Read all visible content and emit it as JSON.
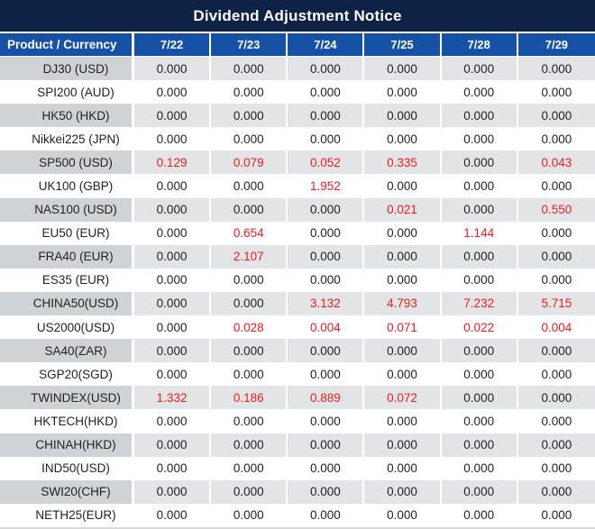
{
  "title": "Dividend Adjustment Notice",
  "table": {
    "header": {
      "product_col": "Product / Currency",
      "dates": [
        "7/22",
        "7/23",
        "7/24",
        "7/25",
        "7/28",
        "7/29"
      ]
    },
    "rows": [
      {
        "product": "DJ30 (USD)",
        "values": [
          "0.000",
          "0.000",
          "0.000",
          "0.000",
          "0.000",
          "0.000"
        ],
        "red": []
      },
      {
        "product": "SPI200 (AUD)",
        "values": [
          "0.000",
          "0.000",
          "0.000",
          "0.000",
          "0.000",
          "0.000"
        ],
        "red": []
      },
      {
        "product": "HK50 (HKD)",
        "values": [
          "0.000",
          "0.000",
          "0.000",
          "0.000",
          "0.000",
          "0.000"
        ],
        "red": []
      },
      {
        "product": "Nikkei225 (JPN)",
        "values": [
          "0.000",
          "0.000",
          "0.000",
          "0.000",
          "0.000",
          "0.000"
        ],
        "red": []
      },
      {
        "product": "SP500 (USD)",
        "values": [
          "0.129",
          "0.079",
          "0.052",
          "0.335",
          "0.000",
          "0.043"
        ],
        "red": [
          0,
          1,
          2,
          3,
          5
        ]
      },
      {
        "product": "UK100 (GBP)",
        "values": [
          "0.000",
          "0.000",
          "1.952",
          "0.000",
          "0.000",
          "0.000"
        ],
        "red": [
          2
        ]
      },
      {
        "product": "NAS100 (USD)",
        "values": [
          "0.000",
          "0.000",
          "0.000",
          "0.021",
          "0.000",
          "0.550"
        ],
        "red": [
          3,
          5
        ]
      },
      {
        "product": "EU50 (EUR)",
        "values": [
          "0.000",
          "0.654",
          "0.000",
          "0.000",
          "1.144",
          "0.000"
        ],
        "red": [
          1,
          4
        ]
      },
      {
        "product": "FRA40 (EUR)",
        "values": [
          "0.000",
          "2.107",
          "0.000",
          "0.000",
          "0.000",
          "0.000"
        ],
        "red": [
          1
        ]
      },
      {
        "product": "ES35 (EUR)",
        "values": [
          "0.000",
          "0.000",
          "0.000",
          "0.000",
          "0.000",
          "0.000"
        ],
        "red": []
      },
      {
        "product": "CHINA50(USD)",
        "values": [
          "0.000",
          "0.000",
          "3.132",
          "4.793",
          "7.232",
          "5.715"
        ],
        "red": [
          2,
          3,
          4,
          5
        ]
      },
      {
        "product": "US2000(USD)",
        "values": [
          "0.000",
          "0.028",
          "0.004",
          "0.071",
          "0.022",
          "0.004"
        ],
        "red": [
          1,
          2,
          3,
          4,
          5
        ]
      },
      {
        "product": "SA40(ZAR)",
        "values": [
          "0.000",
          "0.000",
          "0.000",
          "0.000",
          "0.000",
          "0.000"
        ],
        "red": []
      },
      {
        "product": "SGP20(SGD)",
        "values": [
          "0.000",
          "0.000",
          "0.000",
          "0.000",
          "0.000",
          "0.000"
        ],
        "red": []
      },
      {
        "product": "TWINDEX(USD)",
        "values": [
          "1.332",
          "0.186",
          "0.889",
          "0.072",
          "0.000",
          "0.000"
        ],
        "red": [
          0,
          1,
          2,
          3
        ]
      },
      {
        "product": "HKTECH(HKD)",
        "values": [
          "0.000",
          "0.000",
          "0.000",
          "0.000",
          "0.000",
          "0.000"
        ],
        "red": []
      },
      {
        "product": "CHINAH(HKD)",
        "values": [
          "0.000",
          "0.000",
          "0.000",
          "0.000",
          "0.000",
          "0.000"
        ],
        "red": []
      },
      {
        "product": "IND50(USD)",
        "values": [
          "0.000",
          "0.000",
          "0.000",
          "0.000",
          "0.000",
          "0.000"
        ],
        "red": []
      },
      {
        "product": "SWI20(CHF)",
        "values": [
          "0.000",
          "0.000",
          "0.000",
          "0.000",
          "0.000",
          "0.000"
        ],
        "red": []
      },
      {
        "product": "NETH25(EUR)",
        "values": [
          "0.000",
          "0.000",
          "0.000",
          "0.000",
          "0.000",
          "0.000"
        ],
        "red": []
      }
    ]
  },
  "colors": {
    "title_bg": "#0d2244",
    "header_bg": "#1552a5",
    "row_gray_label": "#cfd3d6",
    "row_gray_data": "#e3e4e5",
    "red": "#ec1c24",
    "text": "#222222",
    "bottom_line": "#d9d9d9"
  }
}
